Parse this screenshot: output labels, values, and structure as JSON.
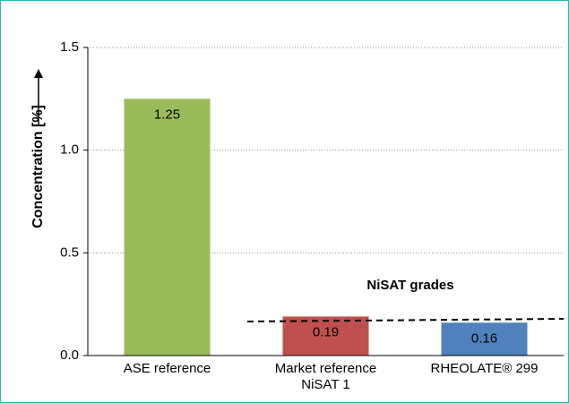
{
  "chart_data": {
    "type": "bar",
    "categories": [
      "ASE reference",
      "Market reference NiSAT 1",
      "RHEOLATE® 299"
    ],
    "values": [
      1.25,
      0.19,
      0.16
    ],
    "colors": [
      "#9bbb59",
      "#c0504d",
      "#4f81bd"
    ],
    "y_label": "Concentration [%]",
    "annotation": "NiSAT grades",
    "ylim": [
      0,
      1.5
    ],
    "yticks": [
      {
        "value": 0,
        "label": "0.0"
      },
      0.5,
      {
        "value": 1,
        "label": "1.0"
      },
      1.5
    ],
    "grid": true
  }
}
